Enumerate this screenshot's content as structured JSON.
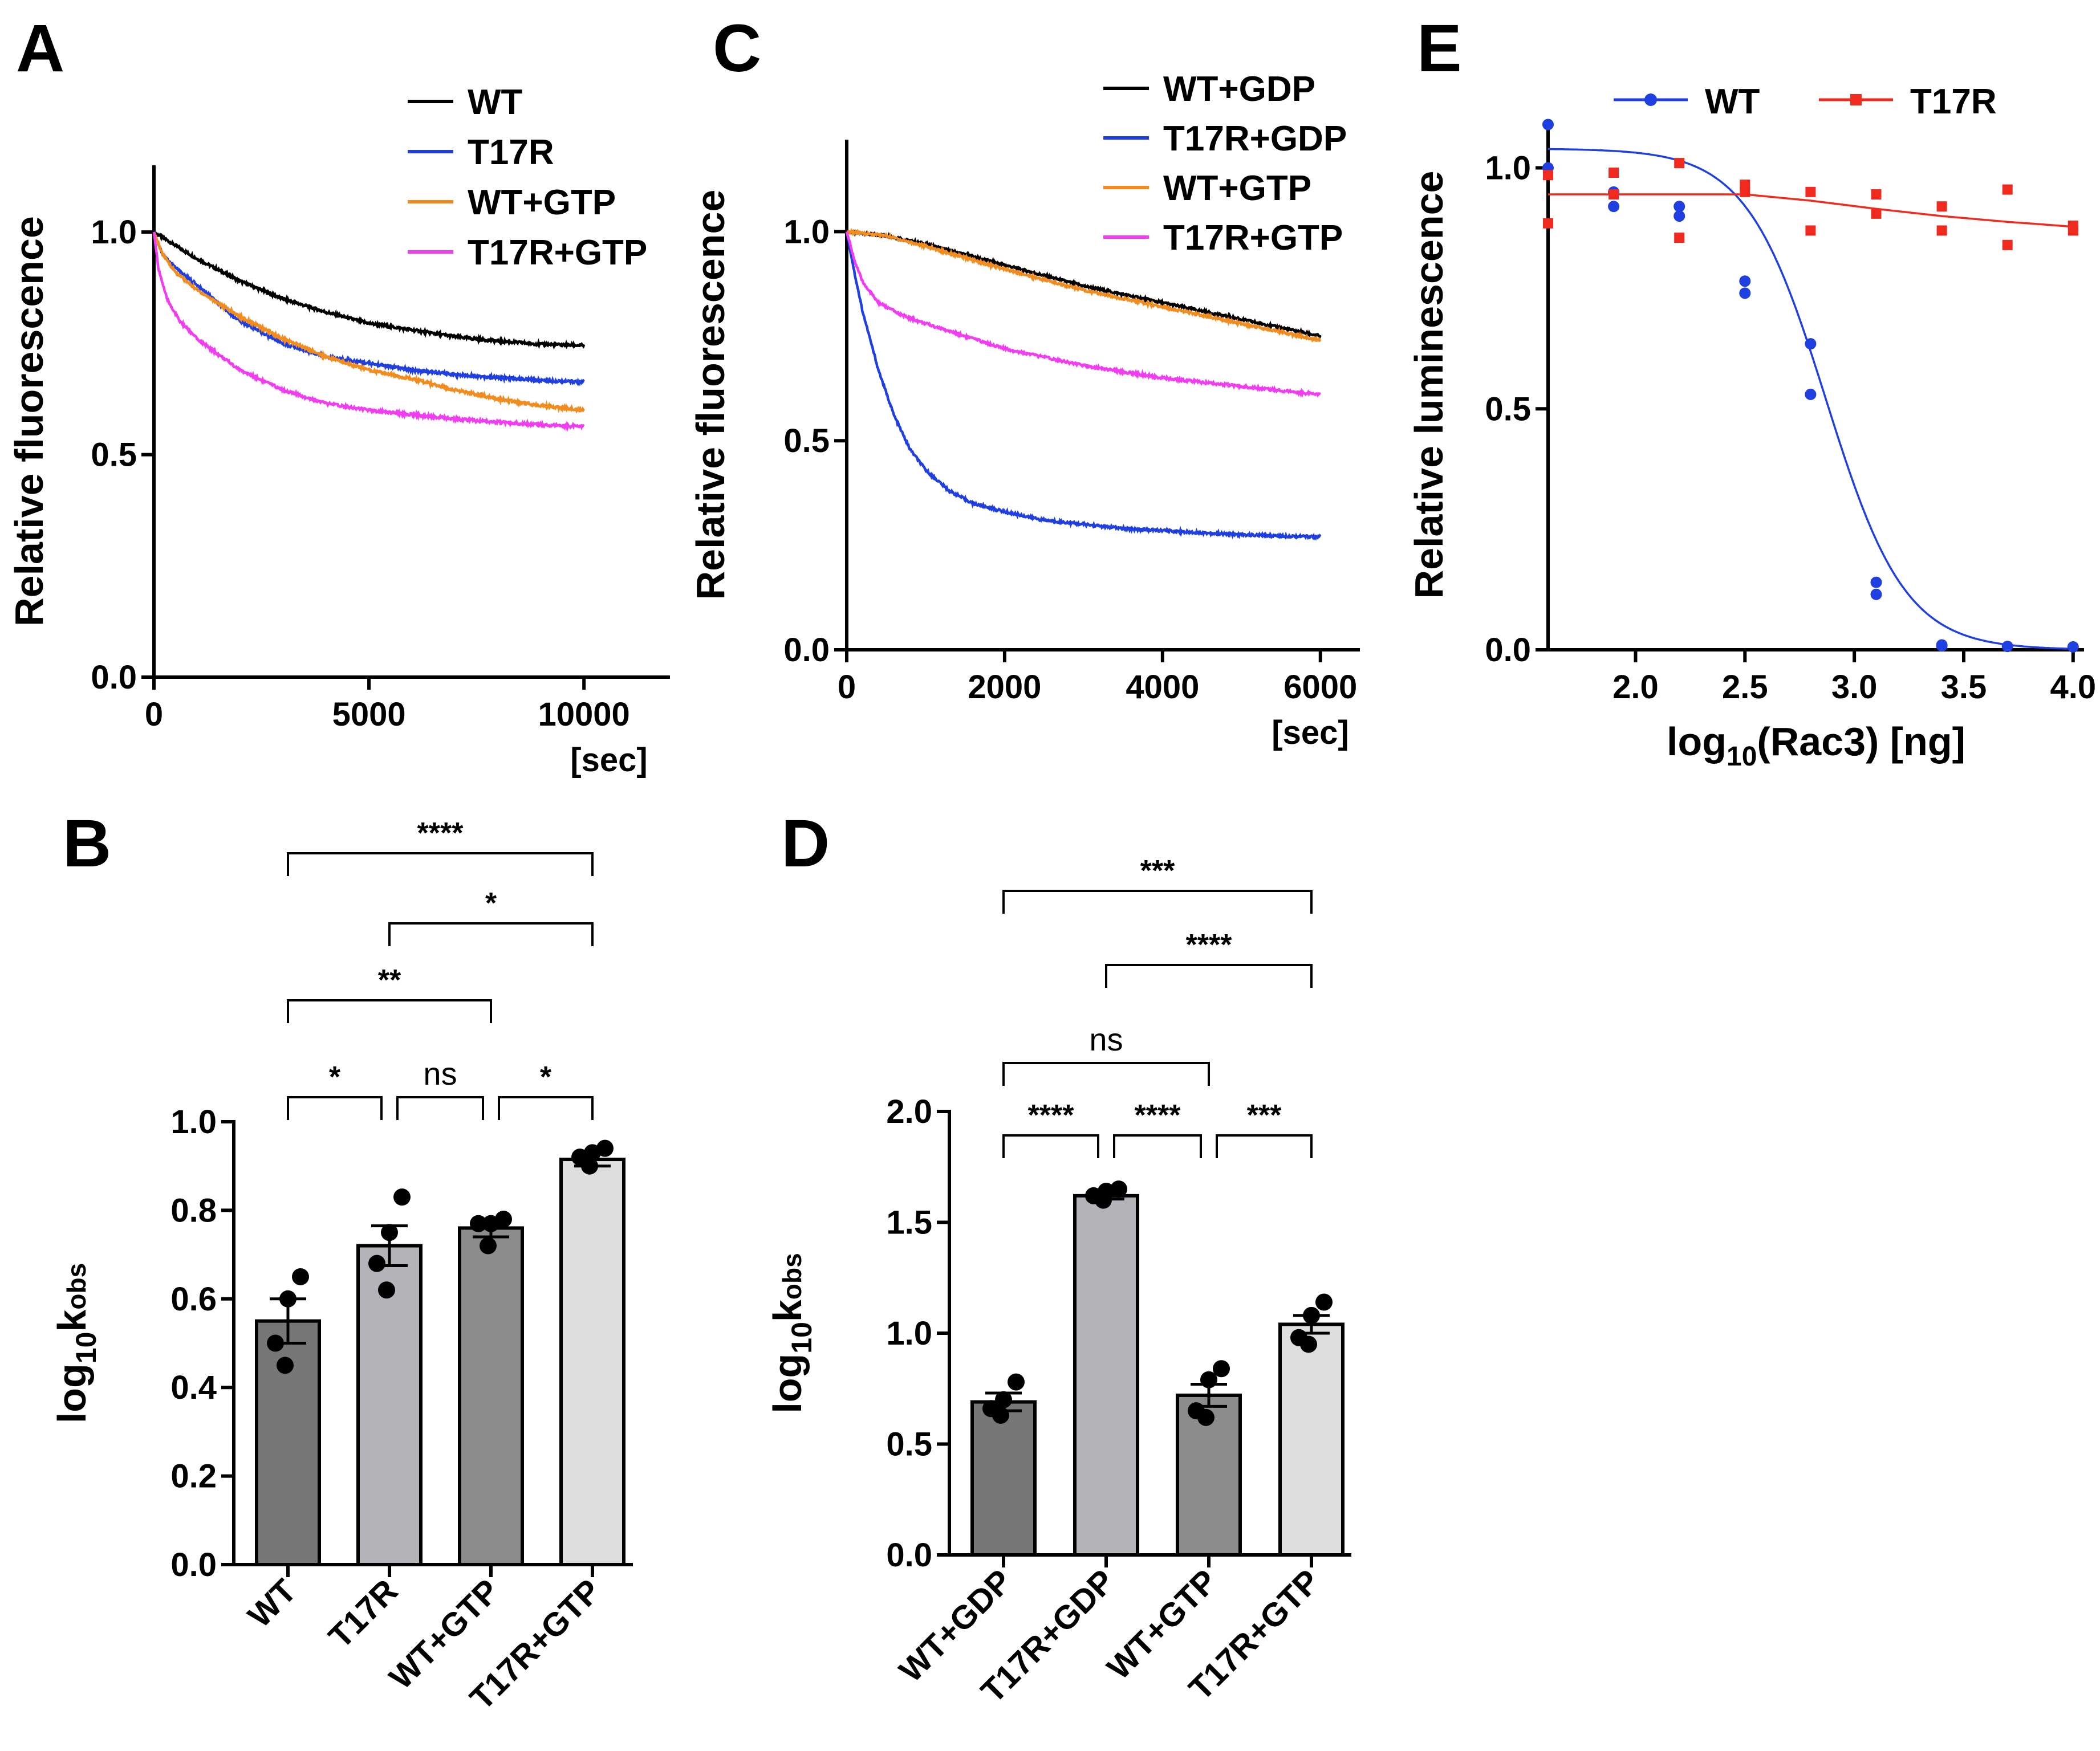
{
  "chart_data": [
    {
      "panel": "A",
      "type": "line",
      "xlabel": "[sec]",
      "ylabel": "Relative fluorescence",
      "xlim": [
        0,
        12000
      ],
      "ylim": [
        0.0,
        1.15
      ],
      "xticks": [
        "0",
        "5000",
        "10000"
      ],
      "yticks": [
        "0.0",
        "0.5",
        "1.0"
      ],
      "legend_position": "top-right",
      "series": [
        {
          "name": "WT",
          "color": "#000000",
          "x": [
            0,
            500,
            1000,
            2000,
            3000,
            4000,
            5000,
            6000,
            7000,
            8000,
            9000,
            10000
          ],
          "y": [
            1.0,
            0.97,
            0.94,
            0.89,
            0.85,
            0.82,
            0.795,
            0.78,
            0.765,
            0.755,
            0.748,
            0.745
          ]
        },
        {
          "name": "T17R",
          "color": "#1f3fe0",
          "x": [
            0,
            200,
            500,
            1000,
            2000,
            3000,
            4000,
            5000,
            6000,
            7000,
            8000,
            9000,
            10000
          ],
          "y": [
            1.0,
            0.95,
            0.92,
            0.88,
            0.8,
            0.75,
            0.72,
            0.705,
            0.69,
            0.68,
            0.673,
            0.667,
            0.663
          ]
        },
        {
          "name": "WT+GTP",
          "color": "#f28c1e",
          "x": [
            0,
            200,
            500,
            1000,
            2000,
            3000,
            4000,
            5000,
            6000,
            7000,
            8000,
            9000,
            10000
          ],
          "y": [
            1.0,
            0.95,
            0.91,
            0.87,
            0.81,
            0.76,
            0.72,
            0.69,
            0.67,
            0.645,
            0.625,
            0.61,
            0.6
          ]
        },
        {
          "name": "T17R+GTP",
          "color": "#f23cf2",
          "x": [
            0,
            100,
            300,
            600,
            1000,
            2000,
            3000,
            4000,
            5000,
            6000,
            7000,
            8000,
            9000,
            10000
          ],
          "y": [
            1.0,
            0.92,
            0.85,
            0.8,
            0.76,
            0.69,
            0.645,
            0.615,
            0.6,
            0.59,
            0.58,
            0.573,
            0.567,
            0.563
          ]
        }
      ]
    },
    {
      "panel": "B",
      "type": "bar",
      "ylabel_main": "log",
      "ylabel_sub": "10",
      "ylabel_tail": "k",
      "ylabel_tail_sub": "obs",
      "ylim": [
        0.0,
        1.0
      ],
      "yticks": [
        "0.0",
        "0.2",
        "0.4",
        "0.6",
        "0.8",
        "1.0"
      ],
      "categories": [
        "WT",
        "T17R",
        "WT+GTP",
        "T17R+GTP"
      ],
      "values": [
        0.55,
        0.72,
        0.76,
        0.915
      ],
      "errors": [
        0.05,
        0.045,
        0.02,
        0.015
      ],
      "points": [
        [
          0.65,
          0.6,
          0.5,
          0.45
        ],
        [
          0.83,
          0.75,
          0.68,
          0.62
        ],
        [
          0.78,
          0.77,
          0.77,
          0.72
        ],
        [
          0.94,
          0.93,
          0.92,
          0.9
        ]
      ],
      "bar_colors": [
        "#777777",
        "#b3b3b8",
        "#8c8c8c",
        "#dedede"
      ],
      "comparisons": [
        {
          "from": 0,
          "to": 1,
          "label": "*"
        },
        {
          "from": 1,
          "to": 2,
          "label": "ns"
        },
        {
          "from": 2,
          "to": 3,
          "label": "*"
        },
        {
          "from": 0,
          "to": 2,
          "label": "**"
        },
        {
          "from": 1,
          "to": 3,
          "label": "*"
        },
        {
          "from": 0,
          "to": 3,
          "label": "****"
        }
      ]
    },
    {
      "panel": "C",
      "type": "line",
      "xlabel": "[sec]",
      "ylabel": "Relative fluorescence",
      "xlim": [
        0,
        6500
      ],
      "ylim": [
        0.0,
        1.22
      ],
      "xticks": [
        "0",
        "2000",
        "4000",
        "6000"
      ],
      "yticks": [
        "0.0",
        "0.5",
        "1.0"
      ],
      "legend_position": "top-right",
      "series": [
        {
          "name": "WT+GDP",
          "color": "#000000",
          "x": [
            0,
            500,
            1000,
            2000,
            3000,
            4000,
            5000,
            6000
          ],
          "y": [
            1.0,
            0.99,
            0.97,
            0.92,
            0.87,
            0.83,
            0.79,
            0.75
          ]
        },
        {
          "name": "T17R+GDP",
          "color": "#1f3fe0",
          "x": [
            0,
            100,
            200,
            400,
            600,
            800,
            1000,
            1300,
            1600,
            2000,
            2500,
            3000,
            3500,
            4000,
            5000,
            6000
          ],
          "y": [
            1.0,
            0.9,
            0.81,
            0.67,
            0.56,
            0.48,
            0.43,
            0.38,
            0.35,
            0.33,
            0.31,
            0.3,
            0.29,
            0.285,
            0.275,
            0.27
          ]
        },
        {
          "name": "WT+GTP",
          "color": "#f28c1e",
          "x": [
            0,
            500,
            1000,
            2000,
            3000,
            4000,
            5000,
            6000
          ],
          "y": [
            1.0,
            0.99,
            0.965,
            0.91,
            0.86,
            0.82,
            0.78,
            0.74
          ]
        },
        {
          "name": "T17R+GTP",
          "color": "#f23cf2",
          "x": [
            0,
            100,
            200,
            400,
            700,
            1000,
            1500,
            2000,
            2500,
            3000,
            3500,
            4000,
            5000,
            6000
          ],
          "y": [
            1.0,
            0.93,
            0.88,
            0.83,
            0.8,
            0.78,
            0.75,
            0.72,
            0.7,
            0.68,
            0.665,
            0.65,
            0.63,
            0.61
          ]
        }
      ]
    },
    {
      "panel": "D",
      "type": "bar",
      "ylabel_main": "log",
      "ylabel_sub": "10",
      "ylabel_tail": "k",
      "ylabel_tail_sub": "obs",
      "ylim": [
        0.0,
        2.0
      ],
      "yticks": [
        "0.0",
        "0.5",
        "1.0",
        "1.5",
        "2.0"
      ],
      "categories": [
        "WT+GDP",
        "T17R+GDP",
        "WT+GTP",
        "T17R+GTP"
      ],
      "values": [
        0.69,
        1.62,
        0.72,
        1.04
      ],
      "errors": [
        0.04,
        0.015,
        0.05,
        0.04
      ],
      "points": [
        [
          0.78,
          0.7,
          0.66,
          0.63
        ],
        [
          1.65,
          1.64,
          1.62,
          1.6
        ],
        [
          0.84,
          0.79,
          0.65,
          0.62
        ],
        [
          1.14,
          1.08,
          0.98,
          0.95
        ]
      ],
      "bar_colors": [
        "#777777",
        "#b3b3b8",
        "#8c8c8c",
        "#dedede"
      ],
      "comparisons": [
        {
          "from": 0,
          "to": 1,
          "label": "****"
        },
        {
          "from": 1,
          "to": 2,
          "label": "****"
        },
        {
          "from": 2,
          "to": 3,
          "label": "***"
        },
        {
          "from": 0,
          "to": 2,
          "label": "ns"
        },
        {
          "from": 1,
          "to": 3,
          "label": "****"
        },
        {
          "from": 0,
          "to": 3,
          "label": "***"
        }
      ]
    },
    {
      "panel": "E",
      "type": "scatter",
      "xlabel_pre": "log",
      "xlabel_sub": "10",
      "xlabel_post": "(Rac3) [ng]",
      "ylabel": "Relative luminescence",
      "xlim": [
        1.6,
        4.05
      ],
      "ylim": [
        0.0,
        1.1
      ],
      "xticks": [
        "2.0",
        "2.5",
        "3.0",
        "3.5",
        "4.0"
      ],
      "yticks": [
        "0.0",
        "0.5",
        "1.0"
      ],
      "legend_position": "top",
      "series": [
        {
          "name": "WT",
          "color": "#1f3fe0",
          "marker": "circle",
          "points": [
            [
              1.6,
              1.09
            ],
            [
              1.6,
              1.0
            ],
            [
              1.9,
              0.95
            ],
            [
              1.9,
              0.92
            ],
            [
              2.2,
              0.92
            ],
            [
              2.2,
              0.9
            ],
            [
              2.5,
              0.765
            ],
            [
              2.5,
              0.74
            ],
            [
              2.8,
              0.635
            ],
            [
              2.8,
              0.53
            ],
            [
              3.1,
              0.14
            ],
            [
              3.1,
              0.115
            ],
            [
              3.4,
              0.01
            ],
            [
              3.4,
              0.008
            ],
            [
              3.7,
              0.007
            ],
            [
              4.0,
              0.006
            ]
          ],
          "fit": {
            "top": 1.04,
            "bottom": 0.0,
            "ic50": 2.87,
            "hill": -2.4
          }
        },
        {
          "name": "T17R",
          "color": "#f02a1e",
          "marker": "square",
          "points": [
            [
              1.6,
              0.985
            ],
            [
              1.6,
              0.885
            ],
            [
              1.9,
              0.99
            ],
            [
              1.9,
              0.945
            ],
            [
              2.2,
              1.01
            ],
            [
              2.2,
              0.855
            ],
            [
              2.5,
              0.965
            ],
            [
              2.5,
              0.95
            ],
            [
              2.8,
              0.95
            ],
            [
              2.8,
              0.87
            ],
            [
              3.1,
              0.945
            ],
            [
              3.1,
              0.905
            ],
            [
              3.4,
              0.92
            ],
            [
              3.4,
              0.87
            ],
            [
              3.7,
              0.955
            ],
            [
              3.7,
              0.84
            ],
            [
              4.0,
              0.88
            ],
            [
              4.0,
              0.87
            ]
          ],
          "fit_points": [
            [
              1.6,
              0.945
            ],
            [
              2.5,
              0.945
            ],
            [
              2.8,
              0.932
            ],
            [
              3.1,
              0.915
            ],
            [
              3.4,
              0.9
            ],
            [
              3.7,
              0.888
            ],
            [
              4.0,
              0.878
            ]
          ]
        }
      ]
    }
  ]
}
